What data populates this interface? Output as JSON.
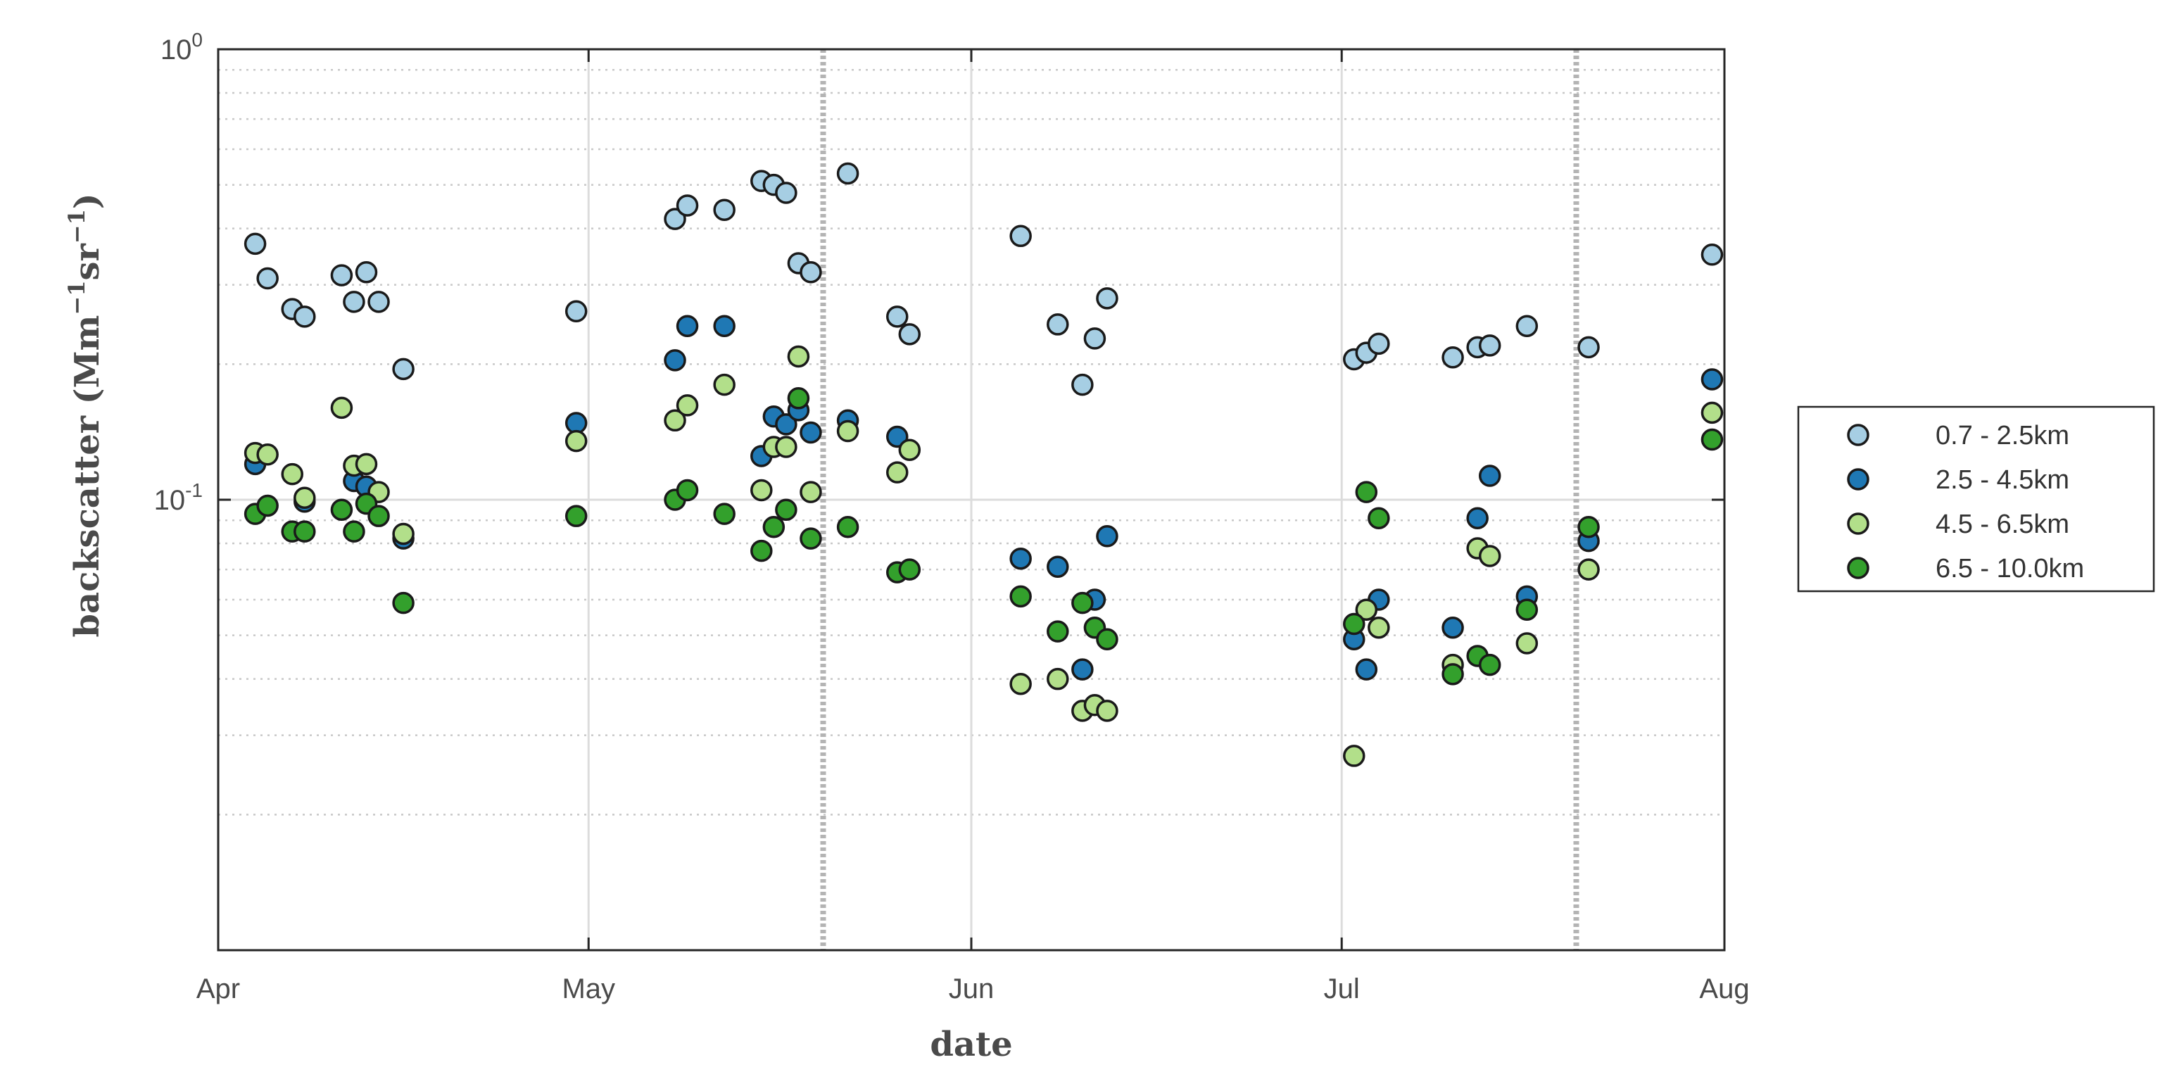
{
  "chart_data": {
    "type": "scatter",
    "xlabel": "date",
    "ylabel_parts": [
      "backscatter (Mm",
      "−1",
      "sr",
      "−1",
      ")"
    ],
    "x_ticks": [
      {
        "date": "2021-04-01",
        "label": "Apr"
      },
      {
        "date": "2021-05-01",
        "label": "May"
      },
      {
        "date": "2021-06-01",
        "label": "Jun"
      },
      {
        "date": "2021-07-01",
        "label": "Jul"
      },
      {
        "date": "2021-08-01",
        "label": "Aug"
      }
    ],
    "xlim": [
      "2021-04-01",
      "2021-08-01"
    ],
    "y_scale": "log",
    "ylim": [
      0.01,
      1
    ],
    "y_ticks": [
      {
        "value": 1,
        "base": "10",
        "exp": "0"
      },
      {
        "value": 0.1,
        "base": "10",
        "exp": "-1"
      }
    ],
    "grid": true,
    "vertical_markers": [
      "2021-05-20",
      "2021-07-20"
    ],
    "legend_position": "right",
    "series": [
      {
        "name": "0.7 - 2.5km",
        "color": "#a6cee3",
        "points": [
          [
            "2021-04-04",
            0.37
          ],
          [
            "2021-04-05",
            0.31
          ],
          [
            "2021-04-07",
            0.265
          ],
          [
            "2021-04-08",
            0.255
          ],
          [
            "2021-04-11",
            0.315
          ],
          [
            "2021-04-12",
            0.275
          ],
          [
            "2021-04-13",
            0.32
          ],
          [
            "2021-04-14",
            0.275
          ],
          [
            "2021-04-16",
            0.195
          ],
          [
            "2021-04-30",
            0.262
          ],
          [
            "2021-05-08",
            0.42
          ],
          [
            "2021-05-09",
            0.45
          ],
          [
            "2021-05-12",
            0.44
          ],
          [
            "2021-05-15",
            0.51
          ],
          [
            "2021-05-16",
            0.5
          ],
          [
            "2021-05-17",
            0.48
          ],
          [
            "2021-05-18",
            0.335
          ],
          [
            "2021-05-19",
            0.32
          ],
          [
            "2021-05-22",
            0.53
          ],
          [
            "2021-05-26",
            0.255
          ],
          [
            "2021-05-27",
            0.233
          ],
          [
            "2021-06-05",
            0.385
          ],
          [
            "2021-06-08",
            0.245
          ],
          [
            "2021-06-10",
            0.18
          ],
          [
            "2021-06-11",
            0.228
          ],
          [
            "2021-06-12",
            0.28
          ],
          [
            "2021-07-02",
            0.205
          ],
          [
            "2021-07-03",
            0.212
          ],
          [
            "2021-07-04",
            0.222
          ],
          [
            "2021-07-10",
            0.207
          ],
          [
            "2021-07-12",
            0.218
          ],
          [
            "2021-07-13",
            0.22
          ],
          [
            "2021-07-16",
            0.243
          ],
          [
            "2021-07-21",
            0.218
          ],
          [
            "2021-07-31",
            0.35
          ]
        ]
      },
      {
        "name": "2.5 - 4.5km",
        "color": "#1f78b4",
        "points": [
          [
            "2021-04-04",
            0.12
          ],
          [
            "2021-04-08",
            0.099
          ],
          [
            "2021-04-12",
            0.11
          ],
          [
            "2021-04-13",
            0.107
          ],
          [
            "2021-04-16",
            0.082
          ],
          [
            "2021-04-30",
            0.148
          ],
          [
            "2021-05-08",
            0.204
          ],
          [
            "2021-05-09",
            0.243
          ],
          [
            "2021-05-12",
            0.243
          ],
          [
            "2021-05-15",
            0.125
          ],
          [
            "2021-05-16",
            0.153
          ],
          [
            "2021-05-17",
            0.147
          ],
          [
            "2021-05-18",
            0.158
          ],
          [
            "2021-05-19",
            0.141
          ],
          [
            "2021-05-22",
            0.15
          ],
          [
            "2021-05-26",
            0.138
          ],
          [
            "2021-06-05",
            0.074
          ],
          [
            "2021-06-08",
            0.071
          ],
          [
            "2021-06-10",
            0.042
          ],
          [
            "2021-06-11",
            0.06
          ],
          [
            "2021-06-12",
            0.083
          ],
          [
            "2021-07-02",
            0.049
          ],
          [
            "2021-07-03",
            0.042
          ],
          [
            "2021-07-04",
            0.06
          ],
          [
            "2021-07-10",
            0.052
          ],
          [
            "2021-07-12",
            0.091
          ],
          [
            "2021-07-13",
            0.113
          ],
          [
            "2021-07-16",
            0.061
          ],
          [
            "2021-07-21",
            0.081
          ],
          [
            "2021-07-31",
            0.185
          ]
        ]
      },
      {
        "name": "4.5 - 6.5km",
        "color": "#b2df8a",
        "points": [
          [
            "2021-04-04",
            0.127
          ],
          [
            "2021-04-05",
            0.126
          ],
          [
            "2021-04-07",
            0.114
          ],
          [
            "2021-04-08",
            0.101
          ],
          [
            "2021-04-11",
            0.16
          ],
          [
            "2021-04-12",
            0.119
          ],
          [
            "2021-04-13",
            0.12
          ],
          [
            "2021-04-14",
            0.104
          ],
          [
            "2021-04-16",
            0.084
          ],
          [
            "2021-04-30",
            0.135
          ],
          [
            "2021-05-08",
            0.15
          ],
          [
            "2021-05-09",
            0.162
          ],
          [
            "2021-05-12",
            0.18
          ],
          [
            "2021-05-15",
            0.105
          ],
          [
            "2021-05-16",
            0.131
          ],
          [
            "2021-05-17",
            0.131
          ],
          [
            "2021-05-18",
            0.208
          ],
          [
            "2021-05-19",
            0.104
          ],
          [
            "2021-05-22",
            0.142
          ],
          [
            "2021-05-26",
            0.115
          ],
          [
            "2021-05-27",
            0.129
          ],
          [
            "2021-06-05",
            0.039
          ],
          [
            "2021-06-08",
            0.04
          ],
          [
            "2021-06-10",
            0.034
          ],
          [
            "2021-06-11",
            0.035
          ],
          [
            "2021-06-12",
            0.034
          ],
          [
            "2021-07-02",
            0.027
          ],
          [
            "2021-07-03",
            0.057
          ],
          [
            "2021-07-04",
            0.052
          ],
          [
            "2021-07-10",
            0.043
          ],
          [
            "2021-07-12",
            0.078
          ],
          [
            "2021-07-13",
            0.075
          ],
          [
            "2021-07-16",
            0.048
          ],
          [
            "2021-07-21",
            0.07
          ],
          [
            "2021-07-31",
            0.156
          ]
        ]
      },
      {
        "name": "6.5 - 10.0km",
        "color": "#33a02c",
        "points": [
          [
            "2021-04-04",
            0.093
          ],
          [
            "2021-04-05",
            0.097
          ],
          [
            "2021-04-07",
            0.085
          ],
          [
            "2021-04-08",
            0.085
          ],
          [
            "2021-04-11",
            0.095
          ],
          [
            "2021-04-12",
            0.085
          ],
          [
            "2021-04-13",
            0.098
          ],
          [
            "2021-04-14",
            0.092
          ],
          [
            "2021-04-16",
            0.059
          ],
          [
            "2021-04-30",
            0.092
          ],
          [
            "2021-05-08",
            0.1
          ],
          [
            "2021-05-09",
            0.105
          ],
          [
            "2021-05-12",
            0.093
          ],
          [
            "2021-05-15",
            0.077
          ],
          [
            "2021-05-16",
            0.087
          ],
          [
            "2021-05-17",
            0.095
          ],
          [
            "2021-05-18",
            0.168
          ],
          [
            "2021-05-19",
            0.082
          ],
          [
            "2021-05-22",
            0.087
          ],
          [
            "2021-05-26",
            0.069
          ],
          [
            "2021-05-27",
            0.07
          ],
          [
            "2021-06-05",
            0.061
          ],
          [
            "2021-06-08",
            0.051
          ],
          [
            "2021-06-10",
            0.059
          ],
          [
            "2021-06-11",
            0.052
          ],
          [
            "2021-06-12",
            0.049
          ],
          [
            "2021-07-02",
            0.053
          ],
          [
            "2021-07-03",
            0.104
          ],
          [
            "2021-07-04",
            0.091
          ],
          [
            "2021-07-10",
            0.041
          ],
          [
            "2021-07-12",
            0.045
          ],
          [
            "2021-07-13",
            0.043
          ],
          [
            "2021-07-16",
            0.057
          ],
          [
            "2021-07-21",
            0.087
          ],
          [
            "2021-07-31",
            0.136
          ]
        ]
      }
    ]
  }
}
